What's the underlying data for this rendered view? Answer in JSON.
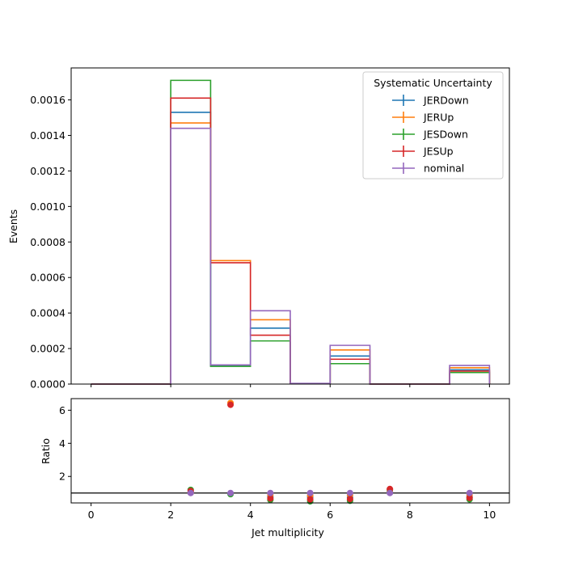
{
  "chart_data": {
    "type": "histogram",
    "xlabel": "Jet multiplicity",
    "ylabel_top": "Events",
    "ylabel_bottom": "Ratio",
    "xlim": [
      -0.5,
      10.5
    ],
    "ylim_top": [
      0,
      0.00178
    ],
    "ylim_bottom": [
      0.4,
      6.7
    ],
    "bin_edges": [
      0,
      1,
      2,
      3,
      4,
      5,
      6,
      7,
      8,
      9,
      10
    ],
    "x_ticks": [
      0,
      2,
      4,
      6,
      8,
      10
    ],
    "x_tick_labels": [
      "0",
      "2",
      "4",
      "6",
      "8",
      "10"
    ],
    "y_ticks_top": [
      0,
      0.0002,
      0.0004,
      0.0006,
      0.0008,
      0.001,
      0.0012,
      0.0014,
      0.0016
    ],
    "y_tick_labels_top": [
      "0.0000",
      "0.0002",
      "0.0004",
      "0.0006",
      "0.0008",
      "0.0010",
      "0.0012",
      "0.0014",
      "0.0016"
    ],
    "y_ticks_bottom": [
      2,
      4,
      6
    ],
    "y_tick_labels_bottom": [
      "2",
      "4",
      "6"
    ],
    "reference_line": 1,
    "legend": {
      "title": "Systematic Uncertainty",
      "placement": "top-right"
    },
    "series": [
      {
        "name": "JERDown",
        "color": "#1f77b4",
        "values": [
          0,
          0,
          0.00153,
          0.000105,
          0.000315,
          3e-06,
          0.000158,
          0,
          0,
          8e-05
        ]
      },
      {
        "name": "JERUp",
        "color": "#ff7f0e",
        "values": [
          0,
          0,
          0.00147,
          0.000695,
          0.000362,
          3e-06,
          0.000192,
          0,
          0,
          9.2e-05
        ]
      },
      {
        "name": "JESDown",
        "color": "#2ca02c",
        "values": [
          0,
          0,
          0.00171,
          0.0001,
          0.000243,
          2e-06,
          0.000115,
          0,
          0,
          6.5e-05
        ]
      },
      {
        "name": "JESUp",
        "color": "#d62728",
        "values": [
          0,
          0,
          0.00161,
          0.000683,
          0.000275,
          2e-06,
          0.00014,
          0,
          0,
          7.3e-05
        ]
      },
      {
        "name": "nominal",
        "color": "#9467bd",
        "values": [
          0,
          0,
          0.00144,
          0.000108,
          0.000413,
          4e-06,
          0.000218,
          0,
          0,
          0.000105
        ]
      }
    ],
    "ratio_points": [
      {
        "name": "JERDown",
        "x": [
          2.5,
          3.5,
          4.5,
          5.5,
          6.5,
          7.5,
          9.5
        ],
        "y": [
          1.06,
          0.97,
          0.76,
          0.75,
          0.73,
          1.05,
          0.76
        ]
      },
      {
        "name": "JERUp",
        "x": [
          2.5,
          3.5,
          4.5,
          5.5,
          6.5,
          7.5,
          9.5
        ],
        "y": [
          1.02,
          6.44,
          0.88,
          0.85,
          0.88,
          1.1,
          0.88
        ]
      },
      {
        "name": "JESDown",
        "x": [
          2.5,
          3.5,
          4.5,
          5.5,
          6.5,
          7.5,
          9.5
        ],
        "y": [
          1.19,
          0.93,
          0.59,
          0.5,
          0.53,
          1.2,
          0.62
        ]
      },
      {
        "name": "JESUp",
        "x": [
          2.5,
          3.5,
          4.5,
          5.5,
          6.5,
          7.5,
          9.5
        ],
        "y": [
          1.12,
          6.33,
          0.67,
          0.62,
          0.64,
          1.24,
          0.7
        ]
      },
      {
        "name": "nominal",
        "x": [
          2.5,
          3.5,
          4.5,
          5.5,
          6.5,
          7.5,
          9.5
        ],
        "y": [
          1.0,
          1.0,
          1.0,
          1.0,
          1.0,
          1.0,
          1.0
        ]
      }
    ]
  }
}
